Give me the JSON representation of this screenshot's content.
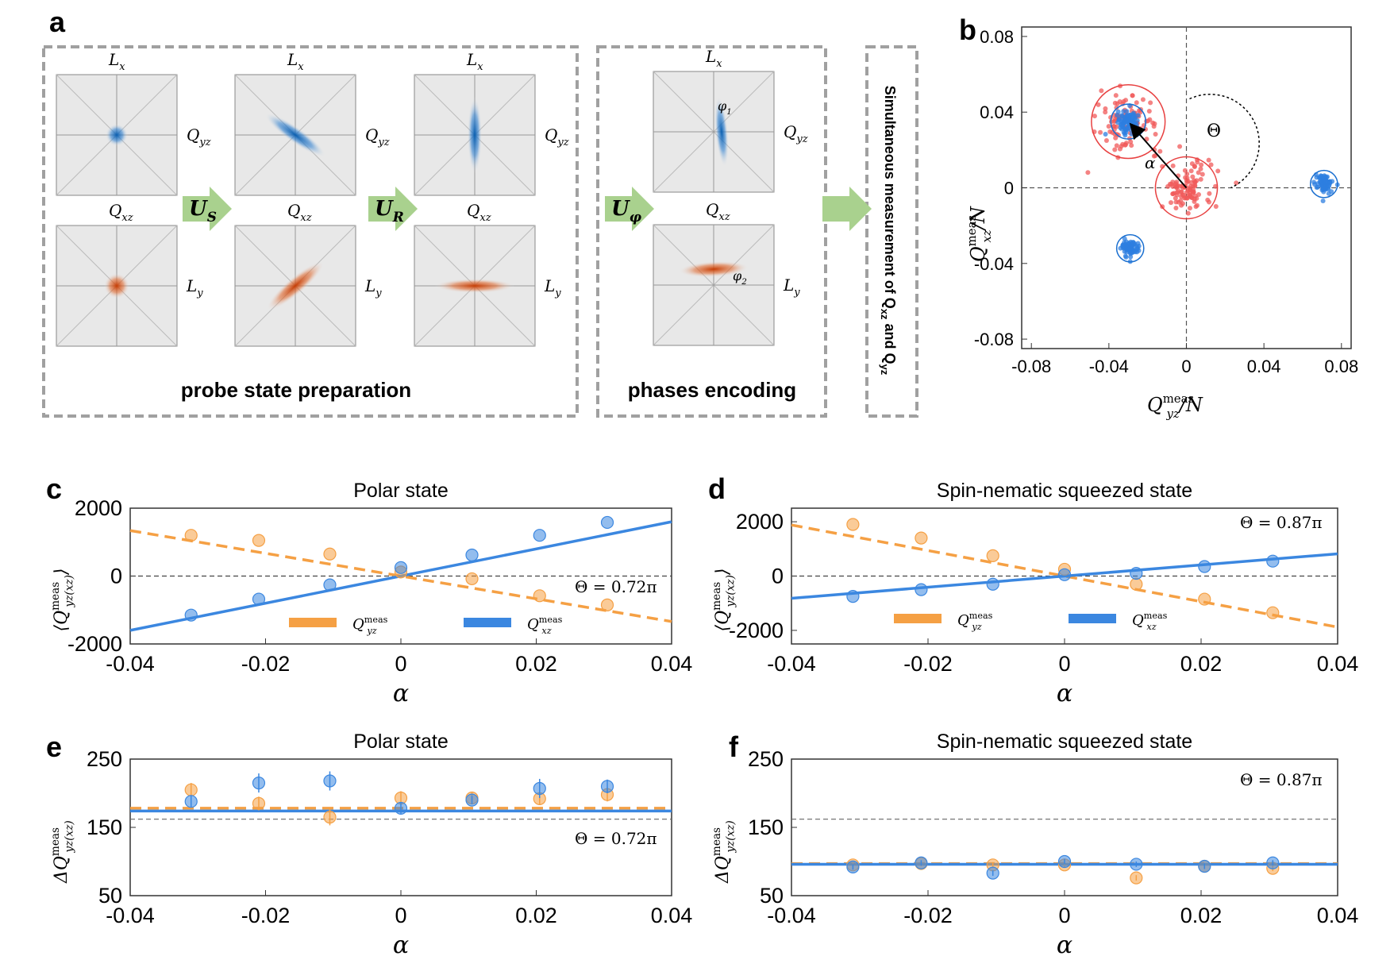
{
  "panel_letters": {
    "a": "a",
    "b": "b",
    "c": "c",
    "d": "d",
    "e": "e",
    "f": "f"
  },
  "panel_a": {
    "section_labels": {
      "prep": "probe state preparation",
      "encode": "phases encoding"
    },
    "measurement_label": "Simultaneous measurement of Q",
    "measurement_sub1": "xz",
    "measurement_and": " and Q",
    "measurement_sub2": "yz",
    "operators": [
      {
        "main": "U",
        "sub": "S"
      },
      {
        "main": "U",
        "sub": "R"
      },
      {
        "main": "U",
        "sub": "φ"
      }
    ],
    "axis_labels": {
      "Lx": {
        "main": "L",
        "sub": "x"
      },
      "Ly": {
        "main": "L",
        "sub": "y"
      },
      "Qxz": {
        "main": "Q",
        "sub": "xz"
      },
      "Qyz": {
        "main": "Q",
        "sub": "yz"
      }
    },
    "phase_labels": {
      "phi1": {
        "main": "φ",
        "sub": "1"
      },
      "phi2": {
        "main": "φ",
        "sub": "2"
      }
    },
    "colors": {
      "blue": "#1a6fc4",
      "orange": "#d0501a",
      "box_bg": "#e8e8e8",
      "dashed_border": "#a0a0a0",
      "arrow_fill": "#a9d18e"
    }
  },
  "chart_data": [
    {
      "id": "b",
      "type": "scatter",
      "xlabel": {
        "main": "Q",
        "sup": "meas",
        "sub": "yz",
        "tail": "/N"
      },
      "ylabel": {
        "main": "Q",
        "sup": "meas",
        "sub": "xz",
        "tail": "/N"
      },
      "xlim": [
        -0.085,
        0.085
      ],
      "ylim": [
        -0.085,
        0.085
      ],
      "xticks": [
        -0.08,
        -0.04,
        0,
        0.04,
        0.08
      ],
      "yticks": [
        -0.08,
        -0.04,
        0,
        0.04,
        0.08
      ],
      "tick_labels": [
        "-0.08",
        "-0.04",
        "0",
        "0.04",
        "0.08"
      ],
      "annotations": {
        "alpha": "α",
        "theta": "Θ"
      },
      "clusters": [
        {
          "name": "polar-center",
          "color": "red",
          "cx": 0.0,
          "cy": 0.0,
          "radius": 0.016,
          "spread": 0.012,
          "n": 110
        },
        {
          "name": "polar-shifted",
          "color": "red",
          "cx": -0.03,
          "cy": 0.035,
          "radius": 0.019,
          "spread": 0.014,
          "n": 110
        },
        {
          "name": "squeezed-shifted",
          "color": "blue",
          "cx": -0.03,
          "cy": 0.035,
          "radius": 0.009,
          "spread": 0.005,
          "n": 90
        },
        {
          "name": "squeezed-right",
          "color": "blue",
          "cx": 0.071,
          "cy": 0.002,
          "radius": 0.007,
          "spread": 0.004,
          "n": 90
        },
        {
          "name": "squeezed-bottom",
          "color": "blue",
          "cx": -0.029,
          "cy": -0.032,
          "radius": 0.007,
          "spread": 0.004,
          "n": 90
        }
      ]
    },
    {
      "id": "c",
      "type": "scatter",
      "title": "Polar state",
      "xlabel": "α",
      "ylabel": {
        "main": "⟨Q",
        "sup": "meas",
        "sub": "yz(xz)",
        "tail": "⟩"
      },
      "xlim": [
        -0.04,
        0.04
      ],
      "ylim": [
        -2000,
        2000
      ],
      "xticks": [
        -0.04,
        -0.02,
        0,
        0.02,
        0.04
      ],
      "xtick_labels": [
        "-0.04",
        "-0.02",
        "0",
        "0.02",
        "0.04"
      ],
      "yticks": [
        2000,
        0,
        -2000
      ],
      "ytick_labels": [
        "2000",
        "0",
        "-2000"
      ],
      "annotation": "Θ = 0.72π",
      "legend": [
        {
          "label": {
            "main": "Q",
            "sup": "meas",
            "sub": "yz"
          },
          "style": "dashed",
          "color": "#f5a044"
        },
        {
          "label": {
            "main": "Q",
            "sup": "meas",
            "sub": "xz"
          },
          "style": "solid",
          "color": "#3b87e0"
        }
      ],
      "series": [
        {
          "name": "Qyz",
          "color": "#f5a044",
          "x": [
            -0.031,
            -0.021,
            -0.0105,
            0,
            0.0105,
            0.0205,
            0.0305
          ],
          "y": [
            1200,
            1050,
            650,
            120,
            -80,
            -580,
            -850
          ],
          "fit": {
            "slope": -33500,
            "intercept": 0
          }
        },
        {
          "name": "Qxz",
          "color": "#3b87e0",
          "x": [
            -0.031,
            -0.021,
            -0.0105,
            0,
            0.0105,
            0.0205,
            0.0305
          ],
          "y": [
            -1150,
            -680,
            -260,
            250,
            620,
            1200,
            1580
          ],
          "fit": {
            "slope": 40000,
            "intercept": 0
          }
        }
      ]
    },
    {
      "id": "d",
      "type": "scatter",
      "title": "Spin-nematic squeezed state",
      "xlabel": "α",
      "ylabel": {
        "main": "⟨Q",
        "sup": "meas",
        "sub": "yz(xz)",
        "tail": "⟩"
      },
      "xlim": [
        -0.04,
        0.04
      ],
      "ylim": [
        -2500,
        2500
      ],
      "xticks": [
        -0.04,
        -0.02,
        0,
        0.02,
        0.04
      ],
      "xtick_labels": [
        "-0.04",
        "-0.02",
        "0",
        "0.02",
        "0.04"
      ],
      "yticks": [
        2000,
        0,
        -2000
      ],
      "ytick_labels": [
        "2000",
        "0",
        "-2000"
      ],
      "annotation": "Θ = 0.87π",
      "legend": [
        {
          "label": {
            "main": "Q",
            "sup": "meas",
            "sub": "yz"
          },
          "style": "dashed",
          "color": "#f5a044"
        },
        {
          "label": {
            "main": "Q",
            "sup": "meas",
            "sub": "xz"
          },
          "style": "solid",
          "color": "#3b87e0"
        }
      ],
      "series": [
        {
          "name": "Qyz",
          "color": "#f5a044",
          "x": [
            -0.031,
            -0.021,
            -0.0105,
            0,
            0.0105,
            0.0205,
            0.0305
          ],
          "y": [
            1900,
            1400,
            750,
            250,
            -300,
            -850,
            -1350
          ],
          "fit": {
            "slope": -47000,
            "intercept": 0
          }
        },
        {
          "name": "Qxz",
          "color": "#3b87e0",
          "x": [
            -0.031,
            -0.021,
            -0.0105,
            0,
            0.0105,
            0.0205,
            0.0305
          ],
          "y": [
            -750,
            -500,
            -300,
            50,
            100,
            350,
            550
          ],
          "fit": {
            "slope": 20500,
            "intercept": 0
          }
        }
      ]
    },
    {
      "id": "e",
      "type": "scatter",
      "title": "Polar state",
      "xlabel": "α",
      "ylabel": {
        "main": "ΔQ",
        "sup": "meas",
        "sub": "yz(xz)",
        "tail": ""
      },
      "xlim": [
        -0.04,
        0.04
      ],
      "ylim": [
        50,
        250
      ],
      "xticks": [
        -0.04,
        -0.02,
        0,
        0.02,
        0.04
      ],
      "xtick_labels": [
        "-0.04",
        "-0.02",
        "0",
        "0.02",
        "0.04"
      ],
      "yticks": [
        250,
        150,
        50
      ],
      "ytick_labels": [
        "250",
        "150",
        "50"
      ],
      "annotation": "Θ = 0.72π",
      "reference_line": 162,
      "series": [
        {
          "name": "Qyz",
          "color": "#f5a044",
          "fit_style": "dashed",
          "fit_level": 178,
          "x": [
            -0.031,
            -0.021,
            -0.0105,
            0,
            0.0105,
            0.0205,
            0.0305
          ],
          "y": [
            205,
            185,
            165,
            193,
            193,
            192,
            198
          ],
          "err": [
            10,
            10,
            12,
            10,
            8,
            8,
            10
          ]
        },
        {
          "name": "Qxz",
          "color": "#3b87e0",
          "fit_style": "solid",
          "fit_level": 174,
          "x": [
            -0.031,
            -0.021,
            -0.0105,
            0,
            0.0105,
            0.0205,
            0.0305
          ],
          "y": [
            188,
            215,
            218,
            178,
            190,
            207,
            210
          ],
          "err": [
            8,
            14,
            14,
            8,
            6,
            14,
            10
          ]
        }
      ]
    },
    {
      "id": "f",
      "type": "scatter",
      "title": "Spin-nematic squeezed state",
      "xlabel": "α",
      "ylabel": {
        "main": "ΔQ",
        "sup": "meas",
        "sub": "yz(xz)",
        "tail": ""
      },
      "xlim": [
        -0.04,
        0.04
      ],
      "ylim": [
        50,
        250
      ],
      "xticks": [
        -0.04,
        -0.02,
        0,
        0.02,
        0.04
      ],
      "xtick_labels": [
        "-0.04",
        "-0.02",
        "0",
        "0.02",
        "0.04"
      ],
      "yticks": [
        250,
        150,
        50
      ],
      "ytick_labels": [
        "250",
        "150",
        "50"
      ],
      "annotation": "Θ = 0.87π",
      "reference_line": 162,
      "series": [
        {
          "name": "Qyz",
          "color": "#f5a044",
          "fit_style": "dashed",
          "fit_level": 97,
          "x": [
            -0.031,
            -0.021,
            -0.0105,
            0,
            0.0105,
            0.0205,
            0.0305
          ],
          "y": [
            95,
            97,
            95,
            95,
            76,
            93,
            90
          ],
          "err": [
            4,
            4,
            4,
            4,
            4,
            4,
            4
          ]
        },
        {
          "name": "Qxz",
          "color": "#3b87e0",
          "fit_style": "solid",
          "fit_level": 96,
          "x": [
            -0.031,
            -0.021,
            -0.0105,
            0,
            0.0105,
            0.0205,
            0.0305
          ],
          "y": [
            92,
            98,
            83,
            100,
            96,
            93,
            98
          ],
          "err": [
            4,
            4,
            4,
            4,
            4,
            4,
            4
          ]
        }
      ]
    }
  ]
}
